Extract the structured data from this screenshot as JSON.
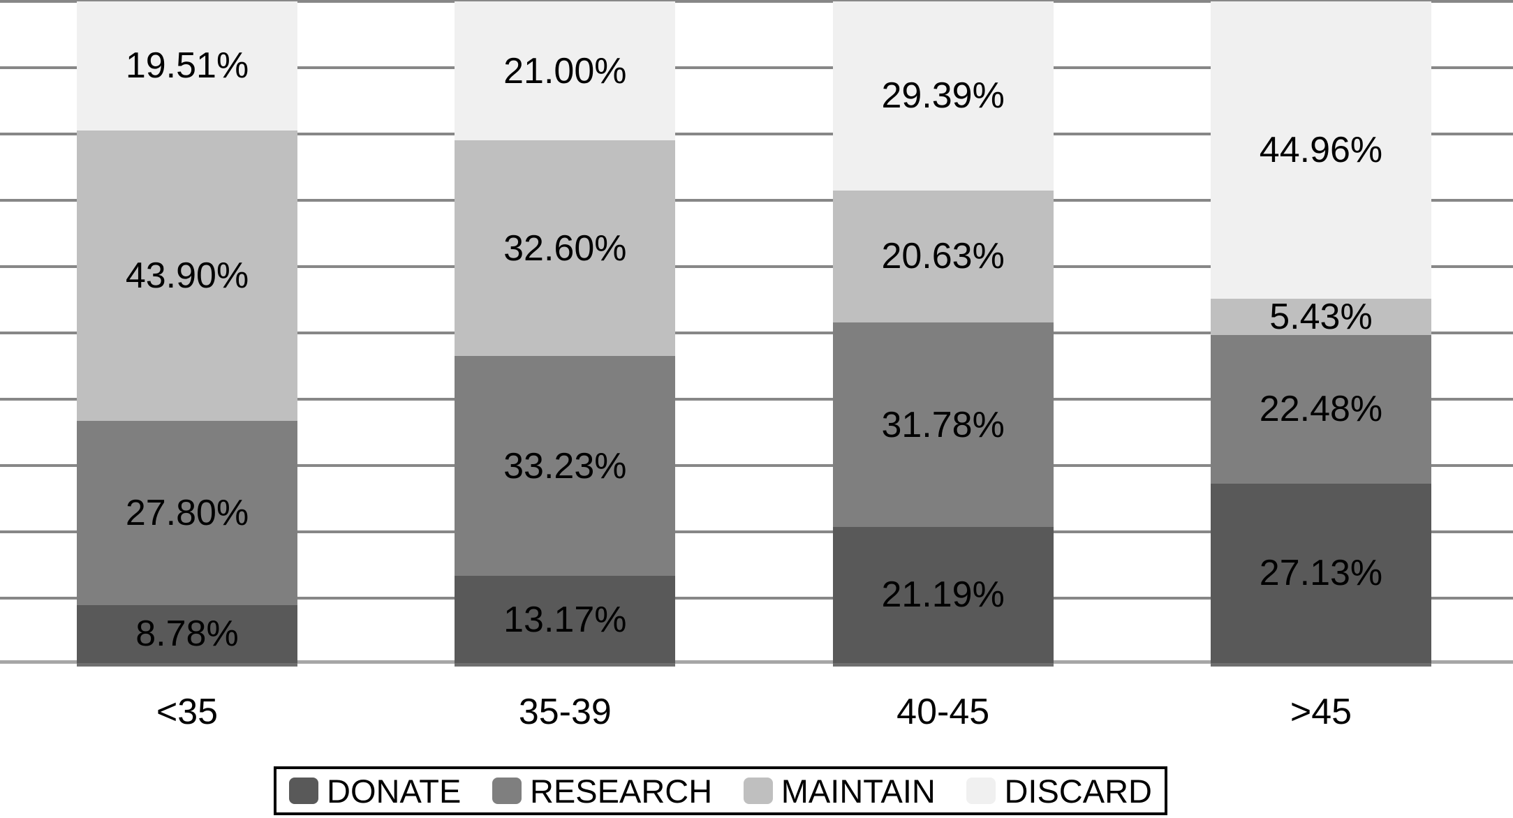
{
  "chart_data": {
    "type": "bar",
    "variant": "stacked-percent-column",
    "categories": [
      "<35",
      "35-39",
      "40-45",
      ">45"
    ],
    "series": [
      {
        "name": "DONATE",
        "color": "#595959",
        "values": [
          8.78,
          13.17,
          21.19,
          27.13
        ]
      },
      {
        "name": "RESEARCH",
        "color": "#7f7f7f",
        "values": [
          27.8,
          33.23,
          31.78,
          22.48
        ]
      },
      {
        "name": "MAINTAIN",
        "color": "#bfbfbf",
        "values": [
          43.9,
          32.6,
          20.63,
          5.43
        ]
      },
      {
        "name": "DISCARD",
        "color": "#f0f0f0",
        "values": [
          19.51,
          21.0,
          29.39,
          44.96
        ]
      }
    ],
    "segment_labels": [
      [
        "8.78%",
        "27.80%",
        "43.90%",
        "19.51%"
      ],
      [
        "13.17%",
        "33.23%",
        "32.60%",
        "21.00%"
      ],
      [
        "21.19%",
        "31.78%",
        "20.63%",
        "29.39%"
      ],
      [
        "27.13%",
        "22.48%",
        "5.43%",
        "44.96%"
      ]
    ],
    "ylim": [
      0,
      100
    ],
    "gridlines": {
      "show": true,
      "interval_percent": 10,
      "color": "#878787"
    },
    "legend": {
      "position": "bottom",
      "entries": [
        "DONATE",
        "RESEARCH",
        "MAINTAIN",
        "DISCARD"
      ]
    }
  },
  "colors": {
    "background": "#ffffff",
    "text": "#000000",
    "baseline": "#a6a6a6",
    "legend_border": "#000000"
  }
}
